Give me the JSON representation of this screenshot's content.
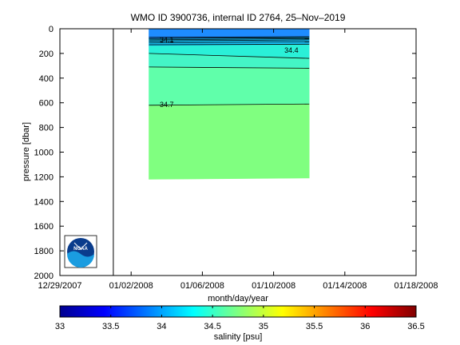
{
  "chart_data": {
    "type": "heatmap",
    "title": "WMO ID 3900736, internal ID 2764, 25–Nov–2019",
    "xlabel": "month/day/year",
    "ylabel": "pressure [dbar]",
    "x_ticks": [
      "12/29/2007",
      "01/02/2008",
      "01/06/2008",
      "01/10/2008",
      "01/14/2008",
      "01/18/2008"
    ],
    "y_ticks": [
      0,
      200,
      400,
      600,
      800,
      1000,
      1200,
      1400,
      1600,
      1800,
      2000
    ],
    "ylim": [
      2000,
      0
    ],
    "y_reversed": true,
    "grid": false,
    "marker_line_x": "01/01/2008",
    "data_x_range": [
      "01/03/2008",
      "01/12/2008"
    ],
    "layers": [
      {
        "p_left": 0,
        "p_right": 0,
        "value": 33.9,
        "color": "#1e8cff"
      },
      {
        "p_left": 80,
        "p_right": 70,
        "value": 34.1,
        "color": "#18c8ff"
      },
      {
        "p_left": 140,
        "p_right": 130,
        "value": 34.3,
        "color": "#2af0d8"
      },
      {
        "p_left": 200,
        "p_right": 240,
        "value": 34.45,
        "color": "#44f5c6"
      },
      {
        "p_left": 310,
        "p_right": 320,
        "value": 34.6,
        "color": "#60ffaa"
      },
      {
        "p_left": 620,
        "p_right": 610,
        "value": 34.75,
        "color": "#80ff80"
      }
    ],
    "data_bottom": {
      "p_left": 1220,
      "p_right": 1210
    },
    "contours": [
      {
        "p_left": 70,
        "p_right": 65
      },
      {
        "p_left": 80,
        "p_right": 72
      },
      {
        "p_left": 90,
        "p_right": 80
      },
      {
        "p_left": 100,
        "p_right": 90
      },
      {
        "p_left": 115,
        "p_right": 105
      },
      {
        "p_left": 130,
        "p_right": 125
      },
      {
        "p_left": 200,
        "p_right": 240
      },
      {
        "p_left": 310,
        "p_right": 320
      },
      {
        "p_left": 620,
        "p_right": 610
      }
    ],
    "contour_labels": [
      {
        "text": "34.1",
        "date": "01/04/2008",
        "p": 90
      },
      {
        "text": "34.4",
        "date": "01/11/2008",
        "p": 175
      },
      {
        "text": "34.7",
        "date": "01/04/2008",
        "p": 615
      }
    ],
    "colorbar": {
      "label": "salinity [psu]",
      "ticks": [
        33,
        33.5,
        34,
        34.5,
        35,
        35.5,
        36,
        36.5
      ],
      "range": [
        33,
        36.5
      ]
    }
  },
  "logo": {
    "text": "NOAA"
  }
}
